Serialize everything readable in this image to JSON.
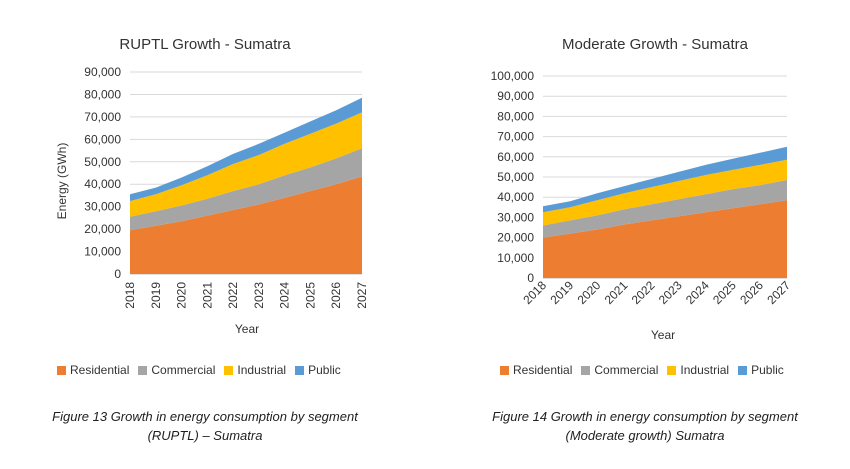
{
  "colors": {
    "Residential": "#ed7d31",
    "Commercial": "#a5a5a5",
    "Industrial": "#ffc000",
    "Public": "#5b9bd5"
  },
  "chart_data": [
    {
      "type": "area",
      "stacked": true,
      "title": "RUPTL Growth - Sumatra",
      "xlabel": "Year",
      "ylabel": "Energy (GWh)",
      "ylim": [
        0,
        90000
      ],
      "yticks": [
        "0",
        "10,000",
        "20,000",
        "30,000",
        "40,000",
        "50,000",
        "60,000",
        "70,000",
        "80,000",
        "90,000"
      ],
      "categories": [
        "2018",
        "2019",
        "2020",
        "2021",
        "2022",
        "2023",
        "2024",
        "2025",
        "2026",
        "2027"
      ],
      "series": [
        {
          "name": "Residential",
          "values": [
            19500,
            21500,
            23500,
            26000,
            28500,
            31000,
            34000,
            37000,
            40000,
            43500
          ]
        },
        {
          "name": "Commercial",
          "values": [
            6000,
            6500,
            7000,
            7500,
            8500,
            9000,
            10000,
            10500,
            11500,
            12500
          ]
        },
        {
          "name": "Industrial",
          "values": [
            7000,
            7500,
            9000,
            10500,
            12000,
            13000,
            14000,
            15000,
            15500,
            16000
          ]
        },
        {
          "name": "Public",
          "values": [
            3000,
            3000,
            3500,
            4000,
            4500,
            5000,
            5000,
            5500,
            6000,
            6500
          ]
        }
      ],
      "legend": "bottom",
      "grid": true
    },
    {
      "type": "area",
      "stacked": true,
      "title": "Moderate Growth - Sumatra",
      "xlabel": "Year",
      "ylabel": "",
      "ylim": [
        0,
        100000
      ],
      "yticks": [
        "0",
        "10,000",
        "20,000",
        "30,000",
        "40,000",
        "50,000",
        "60,000",
        "70,000",
        "80,000",
        "90,000",
        "100,000"
      ],
      "categories": [
        "2018",
        "2019",
        "2020",
        "2021",
        "2022",
        "2023",
        "2024",
        "2025",
        "2026",
        "2027"
      ],
      "series": [
        {
          "name": "Residential",
          "values": [
            20000,
            22000,
            24000,
            26500,
            28500,
            30500,
            32500,
            34500,
            36500,
            38500
          ]
        },
        {
          "name": "Commercial",
          "values": [
            6000,
            6500,
            7000,
            7500,
            8000,
            8500,
            9000,
            9500,
            9500,
            10000
          ]
        },
        {
          "name": "Industrial",
          "values": [
            6500,
            6500,
            7500,
            8000,
            8500,
            9000,
            9500,
            9500,
            10000,
            10000
          ]
        },
        {
          "name": "Public",
          "values": [
            3000,
            3000,
            3500,
            3500,
            4000,
            4500,
            5000,
            5500,
            6000,
            6500
          ]
        }
      ],
      "legend": "bottom",
      "grid": true
    }
  ],
  "legend_labels": [
    "Residential",
    "Commercial",
    "Industrial",
    "Public"
  ],
  "captions": {
    "left_line1": "Figure 13 Growth in energy consumption by segment",
    "left_line2": "(RUPTL) – Sumatra",
    "right_line1": "Figure 14 Growth in energy consumption by segment",
    "right_line2": "(Moderate growth) Sumatra"
  }
}
